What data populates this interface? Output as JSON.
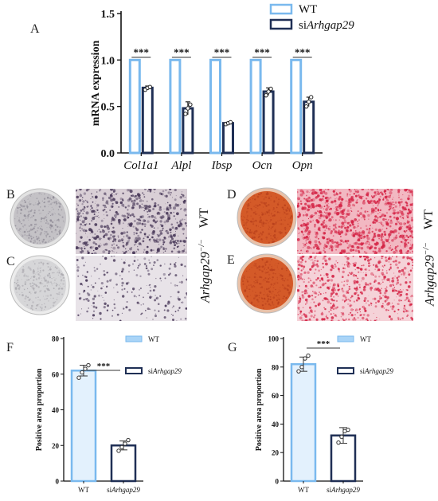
{
  "panels": {
    "A": "A",
    "B": "B",
    "C": "C",
    "D": "D",
    "E": "E",
    "F": "F",
    "G": "G"
  },
  "colors": {
    "wt": "#a9d4f7",
    "wt_stroke": "#7ab9ee",
    "si": "#1f2f55",
    "point": "#2a2a2a",
    "sig": "#111111",
    "alp_stain": "#4a3a5a",
    "ars_stain": "#d42345",
    "ars_dish": "#d45a28",
    "alp_dish": "#b8b8b8"
  },
  "side_labels": {
    "wt": "WT",
    "ko": "Arhgap29"
  },
  "chart_data": [
    {
      "id": "A",
      "type": "bar",
      "categories": [
        "Col1a1",
        "Alpl",
        "Ibsp",
        "Ocn",
        "Opn"
      ],
      "series": [
        {
          "name": "WT",
          "values": [
            1.0,
            1.0,
            1.0,
            1.0,
            1.0
          ]
        },
        {
          "name": "siArhgap29",
          "values": [
            0.7,
            0.48,
            0.32,
            0.66,
            0.55
          ]
        }
      ],
      "errors": [
        0.02,
        0.07,
        0.01,
        0.04,
        0.05
      ],
      "points": [
        [
          0.68,
          0.7,
          0.71
        ],
        [
          0.42,
          0.48,
          0.52
        ],
        [
          0.31,
          0.32,
          0.33
        ],
        [
          0.62,
          0.66,
          0.69
        ],
        [
          0.5,
          0.55,
          0.6
        ]
      ],
      "significance": [
        "***",
        "***",
        "***",
        "***",
        "***"
      ],
      "ylabel": "mRNA expression",
      "yticks": [
        "0.0",
        "0.5",
        "1.0",
        "1.5"
      ],
      "ylim": [
        0,
        1.5
      ],
      "legend": [
        "WT",
        "siArhgap29"
      ],
      "legend_placement": "top-right"
    },
    {
      "id": "F",
      "type": "bar",
      "categories": [
        "WT",
        "siArhgap29"
      ],
      "values": [
        62,
        20
      ],
      "errors": [
        3,
        2.5
      ],
      "points": [
        [
          58,
          61,
          63,
          65
        ],
        [
          17,
          19,
          21,
          23
        ]
      ],
      "significance": "***",
      "ylabel": "Positive area proportion",
      "yticks": [
        "0",
        "20",
        "40",
        "60",
        "80"
      ],
      "ylim": [
        0,
        80
      ],
      "legend": [
        "WT",
        "siArhgap29"
      ],
      "legend_placement": "top-right"
    },
    {
      "id": "G",
      "type": "bar",
      "categories": [
        "WT",
        "siArhgap29"
      ],
      "values": [
        82,
        32
      ],
      "errors": [
        5,
        5.5
      ],
      "points": [
        [
          77,
          80,
          86,
          88
        ],
        [
          27,
          31,
          35,
          36
        ]
      ],
      "significance": "***",
      "ylabel": "Positive area proportion",
      "yticks": [
        "0",
        "20",
        "40",
        "60",
        "80",
        "100"
      ],
      "ylim": [
        0,
        100
      ],
      "legend": [
        "WT",
        "siArhgap29"
      ],
      "legend_placement": "top-right"
    }
  ]
}
